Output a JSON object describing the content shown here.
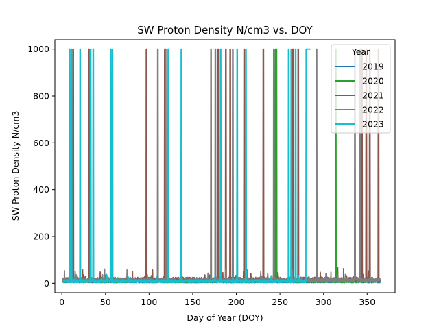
{
  "chart_data": {
    "type": "line",
    "title": "SW Proton Density N/cm3 vs. DOY",
    "xlabel": "Day of Year (DOY)",
    "ylabel": "SW Proton Density N/cm3",
    "xlim": [
      -8,
      382
    ],
    "ylim": [
      -40,
      1040
    ],
    "xticks": [
      0,
      50,
      100,
      150,
      200,
      250,
      300,
      350
    ],
    "yticks": [
      0,
      200,
      400,
      600,
      800,
      1000
    ],
    "grid": false,
    "legend": {
      "title": "Year",
      "position": "top-right"
    },
    "series": [
      {
        "name": "2019",
        "color": "#1f77b4",
        "baseline": 4,
        "noise": 6,
        "x_range": [
          1,
          365
        ],
        "spikes": []
      },
      {
        "name": "2020",
        "color": "#2ca02c",
        "baseline": 6,
        "noise": 10,
        "x_range": [
          1,
          365
        ],
        "spikes": [
          [
            245,
            1000
          ],
          [
            246,
            1000
          ],
          [
            314,
            1000
          ]
        ]
      },
      {
        "name": "2021",
        "color": "#8c564b",
        "baseline": 12,
        "noise": 20,
        "x_range": [
          1,
          365
        ],
        "spikes": [
          [
            13,
            1000
          ],
          [
            31,
            1000
          ],
          [
            97,
            1000
          ],
          [
            118,
            1000
          ],
          [
            179,
            1000
          ],
          [
            188,
            1000
          ],
          [
            193,
            1000
          ],
          [
            209,
            1000
          ],
          [
            231,
            1000
          ],
          [
            265,
            1000
          ],
          [
            271,
            1000
          ],
          [
            344,
            1000
          ],
          [
            349,
            1000
          ],
          [
            353,
            1000
          ],
          [
            363,
            1000
          ]
        ]
      },
      {
        "name": "2022",
        "color": "#7f7f7f",
        "baseline": 10,
        "noise": 18,
        "x_range": [
          1,
          365
        ],
        "spikes": [
          [
            110,
            1000
          ],
          [
            119,
            1000
          ],
          [
            171,
            1000
          ],
          [
            176,
            1000
          ],
          [
            196,
            1000
          ],
          [
            243,
            1000
          ],
          [
            292,
            1000
          ],
          [
            336,
            1000
          ],
          [
            342,
            1000
          ]
        ]
      },
      {
        "name": "2023",
        "color": "#17becf",
        "baseline": 6,
        "noise": 12,
        "x_range": [
          1,
          285
        ],
        "spikes": [
          [
            9,
            1000
          ],
          [
            11,
            1000
          ],
          [
            21,
            1000
          ],
          [
            33,
            1000
          ],
          [
            36,
            1000
          ],
          [
            56,
            1000
          ],
          [
            58,
            1000
          ],
          [
            122,
            1000
          ],
          [
            137,
            1000
          ],
          [
            182,
            1000
          ],
          [
            201,
            1000
          ],
          [
            211,
            1000
          ],
          [
            260,
            1000
          ],
          [
            263,
            1000
          ],
          [
            268,
            1000
          ],
          [
            285,
            1000
          ]
        ],
        "plateaus": [
          [
            280,
            285,
            1000
          ]
        ]
      }
    ]
  }
}
